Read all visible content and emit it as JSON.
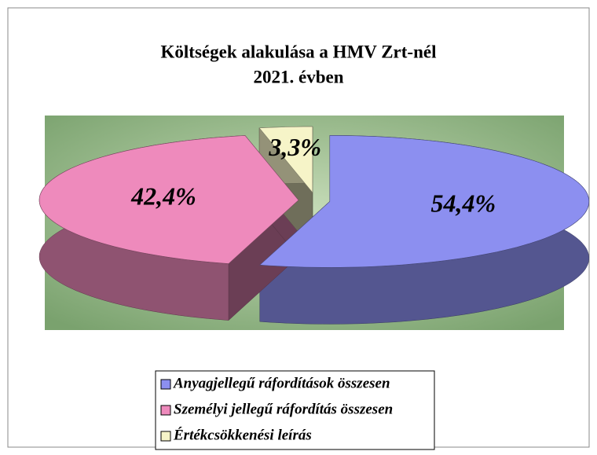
{
  "chart_data": {
    "type": "pie",
    "title": "Költségek alakulása a HMV Zrt-nél",
    "subtitle": "2021. évben",
    "categories": [
      "Anyagjellegű ráfordítások összesen",
      "Személyi jellegű ráfordítás összesen",
      "Értékcsökkenési leírás"
    ],
    "values": [
      54.4,
      42.4,
      3.3
    ],
    "value_labels": [
      "54,4%",
      "42,4%",
      "3,3%"
    ],
    "colors": [
      "#8c8ff0",
      "#ee8abc",
      "#f6f4c8"
    ],
    "legend": "bottom"
  }
}
